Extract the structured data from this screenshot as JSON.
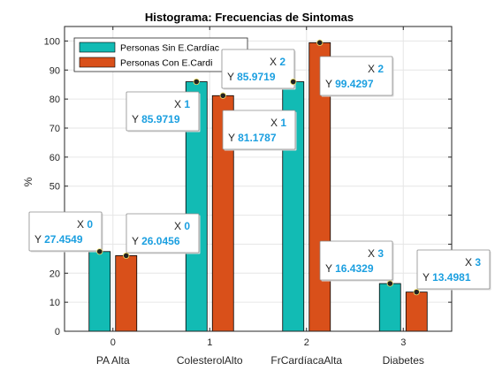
{
  "chart_data": {
    "type": "bar",
    "title": "Histograma: Frecuencias de Sintomas",
    "ylabel": "%",
    "xlabel": "",
    "ylim": [
      0,
      105
    ],
    "yticks": [
      0,
      10,
      20,
      30,
      40,
      50,
      60,
      70,
      80,
      90,
      100
    ],
    "x": [
      0,
      1,
      2,
      3
    ],
    "categories": [
      "PA Alta",
      "ColesterolAlto",
      "FrCardíacaAlta",
      "Diabetes"
    ],
    "grid": true,
    "legend_position": "top-left",
    "series": [
      {
        "name": "Personas Sin E.Cardíacas",
        "legend_text": "Personas Sin E.Cardíac",
        "color": "#12bbb4",
        "values": [
          27.4549,
          85.9719,
          85.9719,
          16.4329
        ]
      },
      {
        "name": "Personas Con E.Cardíacas",
        "legend_text": "Personas Con E.Cardi",
        "color": "#d9501a",
        "values": [
          26.0456,
          81.1787,
          99.4297,
          13.4981
        ]
      }
    ],
    "datatips": [
      {
        "series": 0,
        "index": 0,
        "x_label": "X",
        "x_value": "0",
        "y_label": "Y",
        "y_value": "27.4549"
      },
      {
        "series": 1,
        "index": 0,
        "x_label": "X",
        "x_value": "0",
        "y_label": "Y",
        "y_value": "26.0456"
      },
      {
        "series": 0,
        "index": 1,
        "x_label": "X",
        "x_value": "1",
        "y_label": "Y",
        "y_value": "85.9719"
      },
      {
        "series": 1,
        "index": 1,
        "x_label": "X",
        "x_value": "1",
        "y_label": "Y",
        "y_value": "81.1787"
      },
      {
        "series": 0,
        "index": 2,
        "x_label": "X",
        "x_value": "2",
        "y_label": "Y",
        "y_value": "85.9719"
      },
      {
        "series": 1,
        "index": 2,
        "x_label": "X",
        "x_value": "2",
        "y_label": "Y",
        "y_value": "99.4297"
      },
      {
        "series": 0,
        "index": 3,
        "x_label": "X",
        "x_value": "3",
        "y_label": "Y",
        "y_value": "16.4329"
      },
      {
        "series": 1,
        "index": 3,
        "x_label": "X",
        "x_value": "3",
        "y_label": "Y",
        "y_value": "13.4981"
      }
    ]
  }
}
